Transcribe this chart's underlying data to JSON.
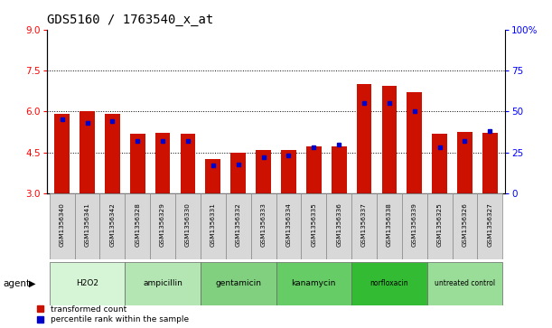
{
  "title": "GDS5160 / 1763540_x_at",
  "samples": [
    "GSM1356340",
    "GSM1356341",
    "GSM1356342",
    "GSM1356328",
    "GSM1356329",
    "GSM1356330",
    "GSM1356331",
    "GSM1356332",
    "GSM1356333",
    "GSM1356334",
    "GSM1356335",
    "GSM1356336",
    "GSM1356337",
    "GSM1356338",
    "GSM1356339",
    "GSM1356325",
    "GSM1356326",
    "GSM1356327"
  ],
  "transformed_count": [
    5.93,
    6.0,
    5.93,
    5.2,
    5.22,
    5.2,
    4.25,
    4.5,
    4.58,
    4.6,
    4.72,
    4.72,
    7.0,
    6.95,
    6.72,
    5.18,
    5.25,
    5.22
  ],
  "percentile_rank": [
    45,
    43,
    44,
    32,
    32,
    32,
    17,
    18,
    22,
    23,
    28,
    30,
    55,
    55,
    50,
    28,
    32,
    38
  ],
  "groups": [
    {
      "name": "H2O2",
      "count": 3,
      "color": "#d6f5d6"
    },
    {
      "name": "ampicillin",
      "count": 3,
      "color": "#b3e6b3"
    },
    {
      "name": "gentamicin",
      "count": 3,
      "color": "#80d080"
    },
    {
      "name": "kanamycin",
      "count": 3,
      "color": "#66cc66"
    },
    {
      "name": "norfloxacin",
      "count": 3,
      "color": "#33bb33"
    },
    {
      "name": "untreated control",
      "count": 3,
      "color": "#99dd99"
    }
  ],
  "ymin": 3,
  "ymax": 9,
  "yticks": [
    3,
    4.5,
    6,
    7.5,
    9
  ],
  "right_yticks": [
    0,
    25,
    50,
    75,
    100
  ],
  "bar_color": "#cc1100",
  "blue_color": "#0000cc",
  "bar_bottom": 3.0,
  "agent_label": "agent",
  "legend_red": "transformed count",
  "legend_blue": "percentile rank within the sample",
  "grid_lines": [
    4.5,
    6.0,
    7.5
  ]
}
